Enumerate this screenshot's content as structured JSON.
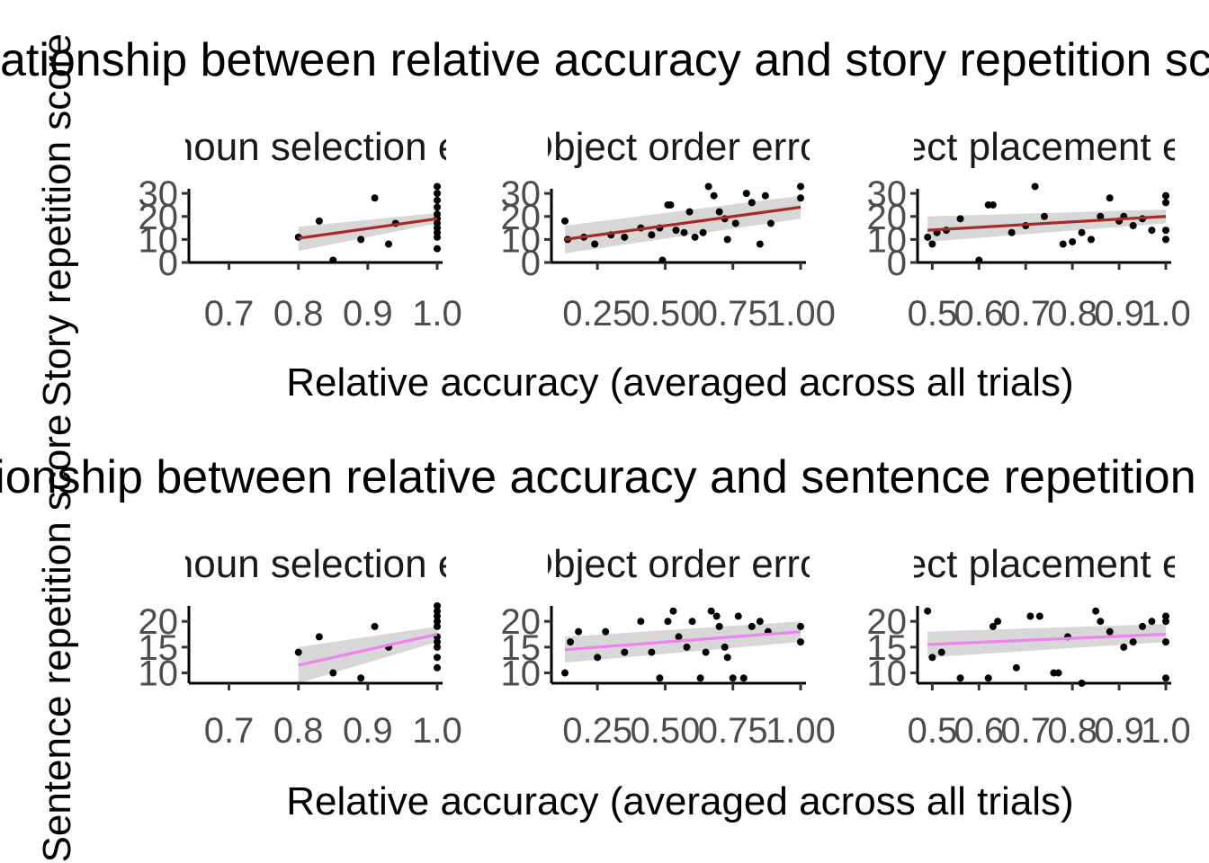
{
  "chart_data": [
    {
      "type": "scatter",
      "title": "Relationship between relative accuracy and story repetition score",
      "xlabel": "Relative accuracy (averaged across all trials)",
      "ylabel": "Story repetition score",
      "line_color": "#a52a2a",
      "ylim": [
        0,
        32
      ],
      "yticks": [
        0,
        10,
        20,
        30
      ],
      "panels": [
        {
          "label": "Pronoun selection error",
          "xlim": [
            0.65,
            1.0
          ],
          "xticks": [
            0.7,
            0.8,
            0.9,
            1.0
          ],
          "x": [
            0.8,
            0.83,
            0.85,
            0.89,
            0.91,
            0.93,
            0.94,
            1.0,
            1.0,
            1.0,
            1.0,
            1.0,
            1.0,
            1.0,
            1.0,
            1.0,
            1.0,
            1.0
          ],
          "y": [
            11,
            18,
            1,
            10,
            28,
            8,
            17,
            33,
            30,
            27,
            24,
            21,
            19,
            17,
            15,
            13,
            11,
            6
          ],
          "fit": {
            "x": [
              0.8,
              1.0
            ],
            "y": [
              10.5,
              19
            ]
          },
          "ci_low": [
            5,
            17
          ],
          "ci_high": [
            15.5,
            21.5
          ]
        },
        {
          "label": "Object order error",
          "xlim": [
            0.1,
            1.0
          ],
          "xticks": [
            0.25,
            0.5,
            0.75,
            1.0
          ],
          "x": [
            0.13,
            0.14,
            0.2,
            0.24,
            0.3,
            0.35,
            0.41,
            0.45,
            0.48,
            0.49,
            0.51,
            0.52,
            0.54,
            0.57,
            0.59,
            0.61,
            0.64,
            0.66,
            0.68,
            0.7,
            0.72,
            0.73,
            0.76,
            0.8,
            0.82,
            0.85,
            0.87,
            0.89,
            1.0,
            1.0
          ],
          "y": [
            18,
            10,
            11,
            8,
            12,
            11,
            15,
            12,
            15,
            1,
            25,
            25,
            14,
            13,
            22,
            11,
            13,
            33,
            29,
            22,
            19,
            10,
            17,
            30,
            26,
            8,
            29,
            17,
            33,
            28
          ],
          "fit": {
            "x": [
              0.13,
              1.0
            ],
            "y": [
              10,
              24
            ]
          },
          "ci_low": [
            4,
            19
          ],
          "ci_high": [
            16,
            29
          ]
        },
        {
          "label": "Object placement error",
          "xlim": [
            0.48,
            1.0
          ],
          "xticks": [
            0.5,
            0.6,
            0.7,
            0.8,
            0.9,
            1.0
          ],
          "x": [
            0.49,
            0.5,
            0.51,
            0.53,
            0.56,
            0.6,
            0.62,
            0.63,
            0.67,
            0.7,
            0.72,
            0.74,
            0.78,
            0.8,
            0.82,
            0.84,
            0.86,
            0.88,
            0.9,
            0.91,
            0.93,
            0.95,
            0.97,
            1.0,
            1.0,
            1.0,
            1.0
          ],
          "y": [
            11,
            8,
            13,
            14,
            19,
            1,
            25,
            25,
            13,
            16,
            33,
            20,
            8,
            9,
            13,
            10,
            20,
            28,
            18,
            20,
            16,
            19,
            14,
            26,
            29,
            10,
            14
          ],
          "fit": {
            "x": [
              0.49,
              1.0
            ],
            "y": [
              14,
              20
            ]
          },
          "ci_low": [
            9,
            17
          ],
          "ci_high": [
            20,
            23
          ]
        }
      ]
    },
    {
      "type": "scatter",
      "title": "Relationship between relative accuracy and sentence repetition score",
      "xlabel": "Relative accuracy (averaged across all trials)",
      "ylabel": "Sentence repetition score",
      "line_color": "#ee82ee",
      "ylim": [
        8,
        23
      ],
      "yticks": [
        10,
        15,
        20
      ],
      "panels": [
        {
          "label": "Pronoun selection error",
          "xlim": [
            0.65,
            1.0
          ],
          "xticks": [
            0.7,
            0.8,
            0.9,
            1.0
          ],
          "x": [
            0.8,
            0.83,
            0.85,
            0.89,
            0.91,
            0.93,
            1.0,
            1.0,
            1.0,
            1.0,
            1.0,
            1.0,
            1.0,
            1.0,
            1.0,
            1.0
          ],
          "y": [
            14,
            17,
            10,
            9,
            19,
            15,
            23,
            22,
            21,
            20,
            19,
            17,
            16,
            15,
            13,
            11
          ],
          "fit": {
            "x": [
              0.8,
              1.0
            ],
            "y": [
              11.5,
              17.5
            ]
          },
          "ci_low": [
            8,
            16
          ],
          "ci_high": [
            15,
            19
          ]
        },
        {
          "label": "Object order error",
          "xlim": [
            0.1,
            1.0
          ],
          "xticks": [
            0.25,
            0.5,
            0.75,
            1.0
          ],
          "x": [
            0.13,
            0.15,
            0.18,
            0.25,
            0.28,
            0.35,
            0.41,
            0.45,
            0.48,
            0.51,
            0.53,
            0.55,
            0.58,
            0.6,
            0.63,
            0.65,
            0.67,
            0.69,
            0.7,
            0.72,
            0.73,
            0.75,
            0.77,
            0.79,
            0.82,
            0.85,
            0.88,
            1.0,
            1.0
          ],
          "y": [
            10,
            16,
            18,
            13,
            18,
            14,
            20,
            14,
            9,
            20,
            22,
            17,
            15,
            20,
            9,
            14,
            22,
            21,
            19,
            15,
            13,
            9,
            21,
            9,
            19,
            20,
            18,
            19,
            16
          ],
          "fit": {
            "x": [
              0.13,
              1.0
            ],
            "y": [
              14.5,
              18
            ]
          },
          "ci_low": [
            12,
            16
          ],
          "ci_high": [
            17,
            20
          ]
        },
        {
          "label": "Object placement error",
          "xlim": [
            0.48,
            1.0
          ],
          "xticks": [
            0.5,
            0.6,
            0.7,
            0.8,
            0.9,
            1.0
          ],
          "x": [
            0.49,
            0.5,
            0.52,
            0.56,
            0.62,
            0.63,
            0.64,
            0.68,
            0.71,
            0.73,
            0.76,
            0.77,
            0.79,
            0.82,
            0.85,
            0.86,
            0.88,
            0.91,
            0.93,
            0.95,
            0.97,
            1.0,
            1.0,
            1.0,
            1.0
          ],
          "y": [
            22,
            13,
            14,
            9,
            9,
            19,
            20,
            11,
            21,
            21,
            10,
            10,
            17,
            8,
            22,
            20,
            18,
            15,
            16,
            19,
            20,
            21,
            20,
            16,
            9
          ],
          "fit": {
            "x": [
              0.49,
              1.0
            ],
            "y": [
              15.5,
              17.5
            ]
          },
          "ci_low": [
            13,
            16
          ],
          "ci_high": [
            18,
            19.5
          ]
        }
      ]
    }
  ]
}
